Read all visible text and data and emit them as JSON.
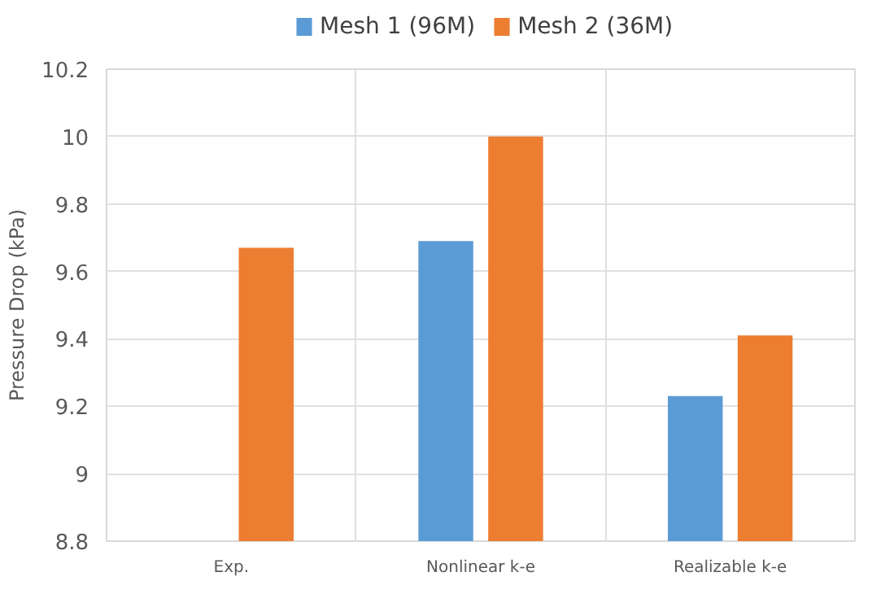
{
  "chart_data": {
    "type": "bar",
    "ylabel": "Pressure Drop (kPa)",
    "categories": [
      "Exp.",
      "Nonlinear k-e",
      "Realizable k-e"
    ],
    "series": [
      {
        "name": "Mesh 1 (96M)",
        "color": "#5b9bd5",
        "values": [
          null,
          9.69,
          9.23
        ]
      },
      {
        "name": "Mesh 2 (36M)",
        "color": "#ed7d31",
        "values": [
          9.67,
          10.0,
          9.41
        ]
      }
    ],
    "ylim": [
      8.8,
      10.2
    ],
    "yticks": [
      8.8,
      9,
      9.2,
      9.4,
      9.6,
      9.8,
      10,
      10.2
    ],
    "grid": true,
    "legend": "top"
  }
}
